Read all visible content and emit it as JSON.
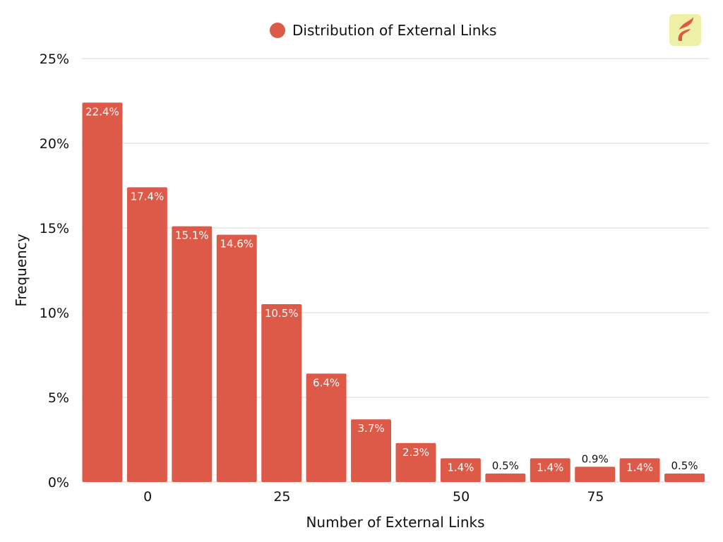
{
  "chart_data": {
    "type": "bar",
    "legend": {
      "label": "Distribution of External Links",
      "placement": "top-center"
    },
    "xlabel": "Number of External Links",
    "ylabel": "Frequency",
    "ylim": [
      0,
      25
    ],
    "yticks": [
      0,
      5,
      10,
      15,
      20,
      25
    ],
    "ytick_labels": [
      "0%",
      "5%",
      "10%",
      "15%",
      "20%",
      "25%"
    ],
    "xtick_labels": [
      {
        "label": "0",
        "bar_index": 1
      },
      {
        "label": "25",
        "bar_index": 4
      },
      {
        "label": "50",
        "bar_index": 8
      },
      {
        "label": "75",
        "bar_index": 11
      }
    ],
    "values": [
      22.4,
      17.4,
      15.1,
      14.6,
      10.5,
      6.4,
      3.7,
      2.3,
      1.4,
      0.5,
      1.4,
      0.9,
      1.4,
      0.5
    ],
    "data_labels": [
      "22.4%",
      "17.4%",
      "15.1%",
      "14.6%",
      "10.5%",
      "6.4%",
      "3.7%",
      "2.3%",
      "1.4%",
      "0.5%",
      "1.4%",
      "0.9%",
      "1.4%",
      "0.5%"
    ],
    "grid": true,
    "colors": {
      "bar": "#DC5A47",
      "grid": "#D9D9D9",
      "logo_bg": "#EEF0A8"
    }
  },
  "logo": {
    "name": "flame-logo"
  }
}
